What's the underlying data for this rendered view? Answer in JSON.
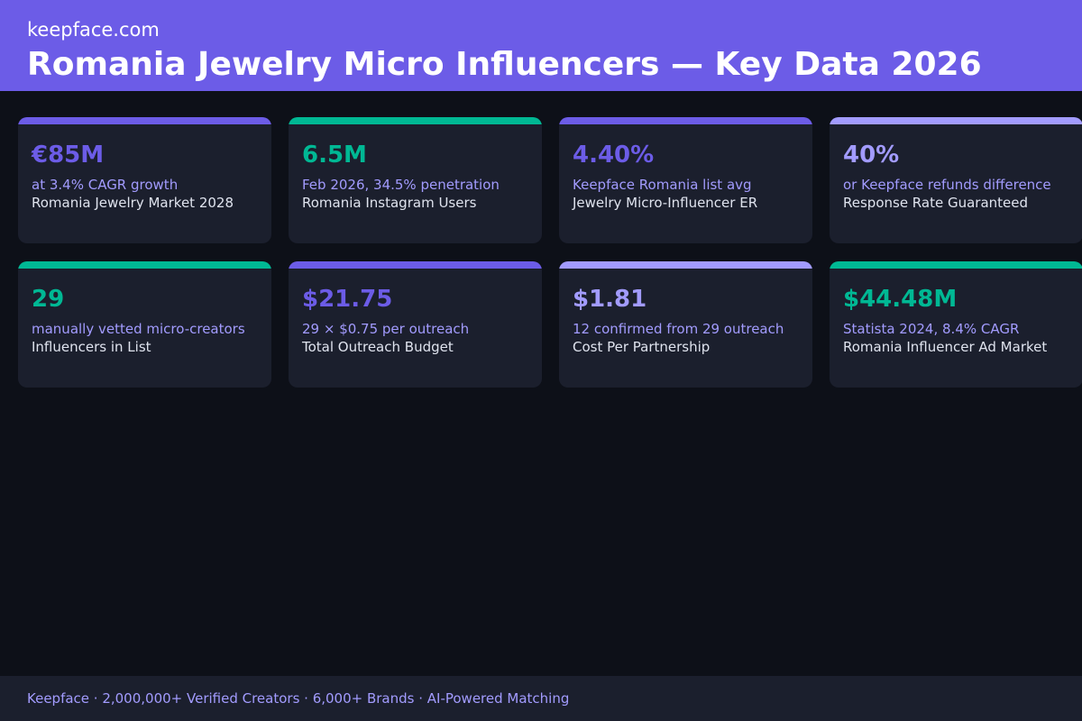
{
  "header": {
    "site": "keepface.com",
    "title": "Romania Jewelry Micro Influencers — Key Data 2026"
  },
  "colors": {
    "purple": "#6c5ce7",
    "teal": "#00b894",
    "lavender": "#a29bfe"
  },
  "cards": [
    {
      "value": "€85M",
      "sub": "at 3.4% CAGR growth",
      "label": "Romania Jewelry Market 2028",
      "accent": "#6c5ce7"
    },
    {
      "value": "6.5M",
      "sub": "Feb 2026, 34.5% penetration",
      "label": "Romania Instagram Users",
      "accent": "#00b894"
    },
    {
      "value": "4.40%",
      "sub": "Keepface Romania list avg",
      "label": "Jewelry Micro-Influencer ER",
      "accent": "#6c5ce7"
    },
    {
      "value": "40%",
      "sub": "or Keepface refunds difference",
      "label": "Response Rate Guaranteed",
      "accent": "#a29bfe"
    },
    {
      "value": "29",
      "sub": "manually vetted micro-creators",
      "label": "Influencers in List",
      "accent": "#00b894"
    },
    {
      "value": "$21.75",
      "sub": "29 × $0.75 per outreach",
      "label": "Total Outreach Budget",
      "accent": "#6c5ce7"
    },
    {
      "value": "$1.81",
      "sub": "12 confirmed from 29 outreach",
      "label": "Cost Per Partnership",
      "accent": "#a29bfe"
    },
    {
      "value": "$44.48M",
      "sub": "Statista 2024, 8.4% CAGR",
      "label": "Romania Influencer Ad Market",
      "accent": "#00b894"
    }
  ],
  "footer": {
    "text": "Keepface · 2,000,000+ Verified Creators · 6,000+ Brands · AI-Powered Matching"
  }
}
